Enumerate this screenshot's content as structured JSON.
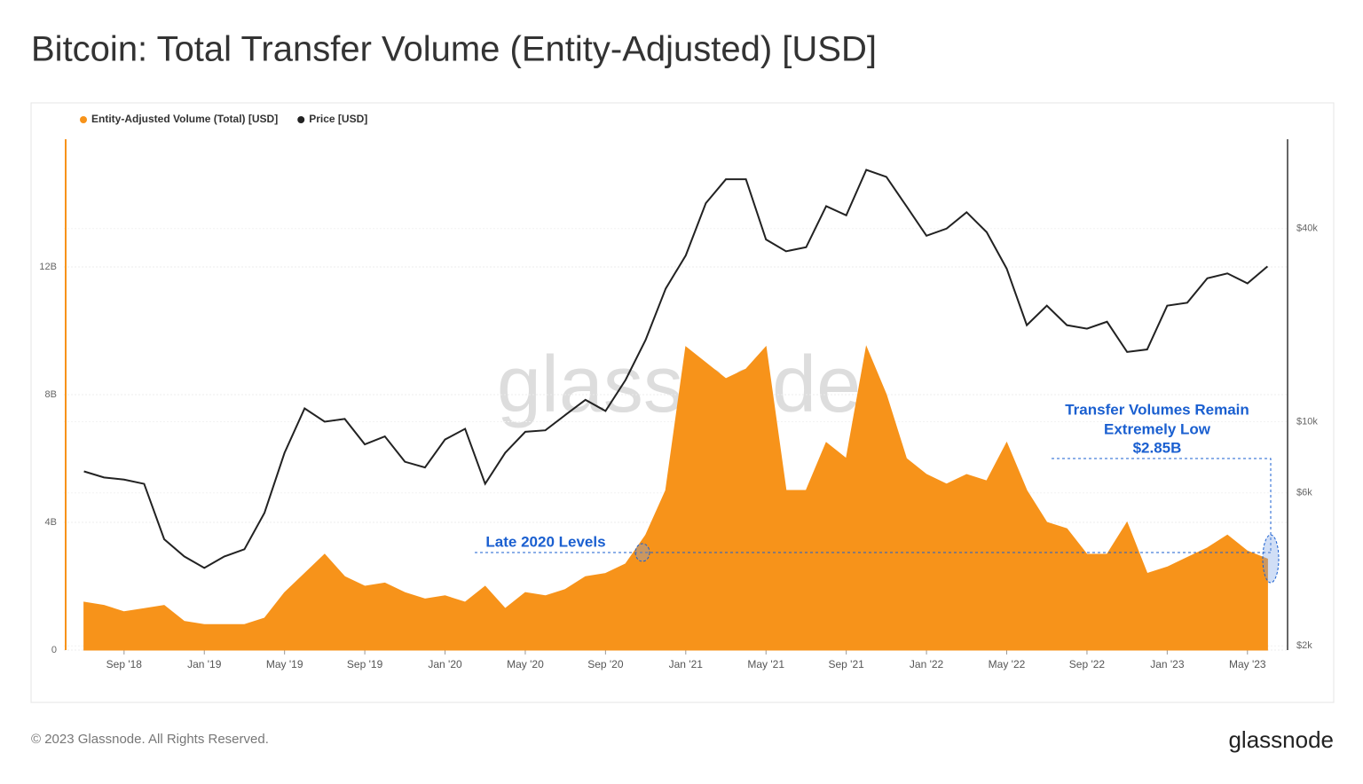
{
  "chart_data": {
    "type": "area",
    "title": "Bitcoin: Total Transfer Volume (Entity-Adjusted) [USD]",
    "x": [
      "2018-07",
      "2018-08",
      "2018-09",
      "2018-10",
      "2018-11",
      "2018-12",
      "2019-01",
      "2019-02",
      "2019-03",
      "2019-04",
      "2019-05",
      "2019-06",
      "2019-07",
      "2019-08",
      "2019-09",
      "2019-10",
      "2019-11",
      "2019-12",
      "2020-01",
      "2020-02",
      "2020-03",
      "2020-04",
      "2020-05",
      "2020-06",
      "2020-07",
      "2020-08",
      "2020-09",
      "2020-10",
      "2020-11",
      "2020-12",
      "2021-01",
      "2021-02",
      "2021-03",
      "2021-04",
      "2021-05",
      "2021-06",
      "2021-07",
      "2021-08",
      "2021-09",
      "2021-10",
      "2021-11",
      "2021-12",
      "2022-01",
      "2022-02",
      "2022-03",
      "2022-04",
      "2022-05",
      "2022-06",
      "2022-07",
      "2022-08",
      "2022-09",
      "2022-10",
      "2022-11",
      "2022-12",
      "2023-01",
      "2023-02",
      "2023-03",
      "2023-04",
      "2023-05",
      "2023-06"
    ],
    "xlim": [
      "2018-06",
      "2023-07"
    ],
    "xticks": [
      {
        "value": "2018-09",
        "label": "Sep '18"
      },
      {
        "value": "2019-01",
        "label": "Jan '19"
      },
      {
        "value": "2019-05",
        "label": "May '19"
      },
      {
        "value": "2019-09",
        "label": "Sep '19"
      },
      {
        "value": "2020-01",
        "label": "Jan '20"
      },
      {
        "value": "2020-05",
        "label": "May '20"
      },
      {
        "value": "2020-09",
        "label": "Sep '20"
      },
      {
        "value": "2021-01",
        "label": "Jan '21"
      },
      {
        "value": "2021-05",
        "label": "May '21"
      },
      {
        "value": "2021-09",
        "label": "Sep '21"
      },
      {
        "value": "2022-01",
        "label": "Jan '22"
      },
      {
        "value": "2022-05",
        "label": "May '22"
      },
      {
        "value": "2022-09",
        "label": "Sep '22"
      },
      {
        "value": "2023-01",
        "label": "Jan '23"
      },
      {
        "value": "2023-05",
        "label": "May '23"
      }
    ],
    "ylim": [
      0,
      16
    ],
    "yticks": [
      0,
      {
        "value": 4,
        "label": "4B"
      },
      {
        "value": 8,
        "label": "8B"
      },
      {
        "value": 12,
        "label": "12B"
      }
    ],
    "y2lim": [
      1940,
      76000
    ],
    "y2scale": "log",
    "y2ticks": [
      {
        "value": 2000,
        "label": "$2k"
      },
      {
        "value": 6000,
        "label": "$6k"
      },
      {
        "value": 10000,
        "label": "$10k"
      },
      {
        "value": 40000,
        "label": "$40k"
      }
    ],
    "grid": true,
    "legend": "top-left",
    "series": [
      {
        "name": "Entity-Adjusted Volume (Total) [USD]",
        "color": "#f7931a",
        "type": "area",
        "values": [
          1.5,
          1.4,
          1.2,
          1.3,
          1.4,
          0.9,
          0.8,
          0.8,
          0.8,
          1.0,
          1.8,
          2.4,
          3.0,
          2.3,
          2.0,
          2.1,
          1.8,
          1.6,
          1.7,
          1.5,
          2.0,
          1.3,
          1.8,
          1.7,
          1.9,
          2.3,
          2.4,
          2.7,
          3.6,
          5.0,
          9.5,
          9.0,
          8.5,
          8.8,
          9.5,
          5.0,
          5.0,
          6.5,
          6.0,
          9.5,
          8.0,
          6.0,
          5.5,
          5.2,
          5.5,
          5.3,
          6.5,
          5.0,
          4.0,
          3.8,
          3.0,
          3.0,
          4.0,
          2.4,
          2.6,
          2.9,
          3.2,
          3.6,
          3.1,
          2.85
        ]
      },
      {
        "name": "Price [USD]",
        "color": "#222222",
        "type": "line",
        "axis": "y2",
        "values": [
          7000,
          6700,
          6600,
          6400,
          4300,
          3800,
          3500,
          3800,
          4000,
          5200,
          8000,
          11000,
          10000,
          10200,
          8500,
          9000,
          7500,
          7200,
          8800,
          9500,
          6400,
          8000,
          9300,
          9400,
          10500,
          11700,
          10800,
          13500,
          18000,
          26000,
          33000,
          48000,
          57000,
          57000,
          37000,
          34000,
          35000,
          47000,
          44000,
          61000,
          58000,
          47000,
          38000,
          40000,
          45000,
          39000,
          30000,
          20000,
          23000,
          20000,
          19500,
          20500,
          16500,
          16800,
          23000,
          23500,
          28000,
          29000,
          27000,
          30500
        ]
      }
    ],
    "annotations": [
      "Late 2020 Levels",
      "Transfer Volumes Remain",
      "Extremely Low",
      "$2.85B"
    ],
    "watermark": "glassnode"
  },
  "footer": {
    "copyright": "© 2023 Glassnode. All Rights Reserved.",
    "logo": "glassnode"
  }
}
